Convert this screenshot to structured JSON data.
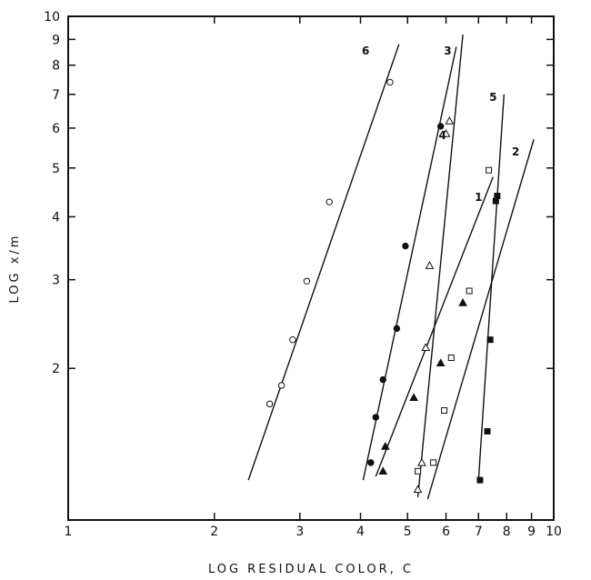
{
  "chart_data": {
    "type": "scatter",
    "xlabel": "LOG RESIDUAL COLOR, C",
    "ylabel": "LOG x/m",
    "xscale": "log",
    "yscale": "log",
    "xlim": [
      1,
      10
    ],
    "ylim": [
      1,
      10
    ],
    "grid": false,
    "x_ticks": [
      {
        "value": 1,
        "label": "1"
      },
      {
        "value": 2,
        "label": "2"
      },
      {
        "value": 3,
        "label": "3"
      },
      {
        "value": 4,
        "label": "4"
      },
      {
        "value": 5,
        "label": "5"
      },
      {
        "value": 6,
        "label": "6"
      },
      {
        "value": 7,
        "label": "7"
      },
      {
        "value": 8,
        "label": "8"
      },
      {
        "value": 9,
        "label": "9"
      },
      {
        "value": 10,
        "label": "10"
      }
    ],
    "y_ticks": [
      {
        "value": 2,
        "label": "2"
      },
      {
        "value": 3,
        "label": "3"
      },
      {
        "value": 4,
        "label": "4"
      },
      {
        "value": 5,
        "label": "5"
      },
      {
        "value": 6,
        "label": "6"
      },
      {
        "value": 7,
        "label": "7"
      },
      {
        "value": 8,
        "label": "8"
      },
      {
        "value": 9,
        "label": "9"
      },
      {
        "value": 10,
        "label": "10"
      }
    ],
    "series": [
      {
        "name": "6",
        "marker": "open-circle",
        "points": [
          [
            2.6,
            1.7
          ],
          [
            2.75,
            1.85
          ],
          [
            2.9,
            2.28
          ],
          [
            3.1,
            2.98
          ],
          [
            3.45,
            4.28
          ],
          [
            4.6,
            7.4
          ]
        ],
        "line": [
          [
            2.35,
            1.2
          ],
          [
            4.8,
            8.8
          ]
        ]
      },
      {
        "name": "3",
        "marker": "filled-circle",
        "points": [
          [
            4.2,
            1.3
          ],
          [
            4.3,
            1.6
          ],
          [
            4.45,
            1.9
          ],
          [
            4.75,
            2.4
          ],
          [
            4.95,
            3.5
          ],
          [
            5.85,
            6.05
          ]
        ],
        "line": [
          [
            4.05,
            1.2
          ],
          [
            6.3,
            8.7
          ]
        ]
      },
      {
        "name": "4",
        "marker": "open-triangle",
        "points": [
          [
            5.25,
            1.15
          ],
          [
            5.35,
            1.3
          ],
          [
            5.45,
            2.2
          ],
          [
            5.55,
            3.2
          ],
          [
            6.0,
            5.85
          ],
          [
            6.1,
            6.2
          ]
        ],
        "line": [
          [
            5.25,
            1.11
          ],
          [
            6.5,
            9.2
          ]
        ]
      },
      {
        "name": "1",
        "marker": "filled-triangle",
        "points": [
          [
            4.45,
            1.25
          ],
          [
            4.5,
            1.4
          ],
          [
            5.15,
            1.75
          ],
          [
            5.85,
            2.05
          ],
          [
            6.5,
            2.7
          ]
        ],
        "line": [
          [
            4.3,
            1.22
          ],
          [
            7.5,
            4.8
          ]
        ]
      },
      {
        "name": "2",
        "marker": "open-square",
        "points": [
          [
            5.25,
            1.25
          ],
          [
            5.65,
            1.3
          ],
          [
            5.95,
            1.65
          ],
          [
            6.15,
            2.1
          ],
          [
            6.7,
            2.85
          ],
          [
            7.35,
            4.95
          ]
        ],
        "line": [
          [
            5.5,
            1.1
          ],
          [
            9.1,
            5.7
          ]
        ]
      },
      {
        "name": "5",
        "marker": "filled-square",
        "points": [
          [
            7.05,
            1.2
          ],
          [
            7.3,
            1.5
          ],
          [
            7.4,
            2.28
          ],
          [
            7.6,
            4.3
          ],
          [
            7.65,
            4.4
          ]
        ],
        "line": [
          [
            7.0,
            1.2
          ],
          [
            7.9,
            7.0
          ]
        ]
      }
    ],
    "line_labels": [
      {
        "text": "6",
        "x": 4.1,
        "y": 8.4
      },
      {
        "text": "3",
        "x": 6.05,
        "y": 8.4
      },
      {
        "text": "4",
        "x": 5.9,
        "y": 5.7
      },
      {
        "text": "5",
        "x": 7.5,
        "y": 6.8
      },
      {
        "text": "2",
        "x": 8.35,
        "y": 5.3
      },
      {
        "text": "1",
        "x": 7.0,
        "y": 4.3
      }
    ]
  }
}
